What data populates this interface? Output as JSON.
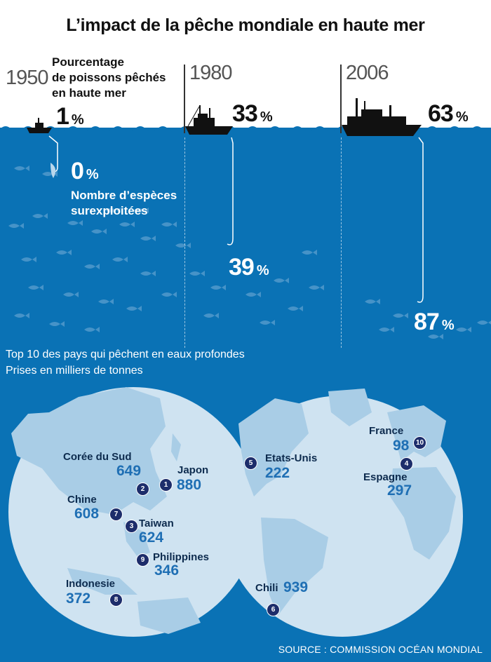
{
  "title": "L’impact de la pêche mondiale en haute mer",
  "catch_label": "Pourcentage de poissons pêchés en haute mer",
  "catch_label_lines": [
    "Pourcentage",
    "de poissons pêchés",
    "en haute mer"
  ],
  "species_label_lines": [
    "Nombre d’espèces",
    "surexploitées"
  ],
  "unit": "%",
  "periods": [
    {
      "year": "1950",
      "catch_pct": "1",
      "species_pct": "0"
    },
    {
      "year": "1980",
      "catch_pct": "33",
      "species_pct": "39"
    },
    {
      "year": "2006",
      "catch_pct": "63",
      "species_pct": "87"
    }
  ],
  "map_title": "Top 10 des pays qui pêchent en eaux profondes",
  "map_subtitle": "Prises en milliers de tonnes",
  "countries": [
    {
      "rank": "1",
      "name": "Japon",
      "value": "880"
    },
    {
      "rank": "2",
      "name": "Corée du Sud",
      "value": "649"
    },
    {
      "rank": "3",
      "name": "Taiwan",
      "value": "624"
    },
    {
      "rank": "4",
      "name": "Espagne",
      "value": "297"
    },
    {
      "rank": "5",
      "name": "Etats-Unis",
      "value": "222"
    },
    {
      "rank": "6",
      "name": "Chili",
      "value": "939"
    },
    {
      "rank": "7",
      "name": "Chine",
      "value": "608"
    },
    {
      "rank": "8",
      "name": "Indonesie",
      "value": "372"
    },
    {
      "rank": "9",
      "name": "Philippines",
      "value": "346"
    },
    {
      "rank": "10",
      "name": "France",
      "value": "98"
    }
  ],
  "source": "SOURCE : COMMISSION OCÉAN MONDIAL",
  "colors": {
    "sea": "#0a72b5",
    "globe": "#cfe3f1",
    "land": "#a9cde6",
    "marker": "#1d2d6b",
    "value": "#1f6fb4"
  }
}
